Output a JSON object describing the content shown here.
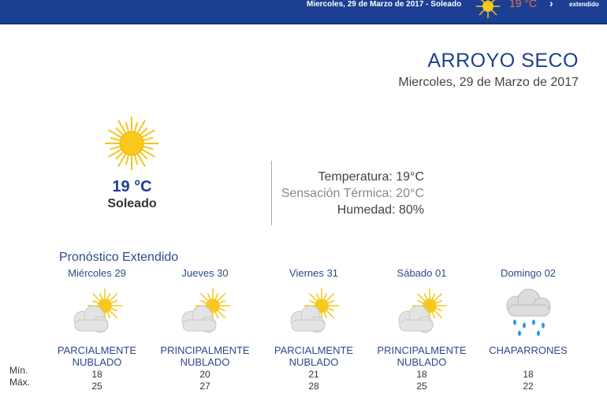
{
  "header": {
    "date_condition": "Miercoles, 29 de Marzo de 2017 - Soleado",
    "temp": "19 °C",
    "extended_link": "extendido",
    "icon": "sun-icon"
  },
  "location": {
    "city": "ARROYO SECO",
    "date": "Miercoles, 29 de Marzo de 2017"
  },
  "current": {
    "temp": "19 °C",
    "condition": "Soleado",
    "icon": "sun-icon",
    "temperature": "Temperatura: 19°C",
    "feels_like": "Sensación Térmica: 20°C",
    "humidity": "Humedad: 80%"
  },
  "forecast": {
    "title": "Pronóstico Extendido",
    "min_label": "Mín.",
    "max_label": "Máx.",
    "days": [
      {
        "name": "Miércoles 29",
        "line1": "PARCIALMENTE",
        "line2": "NUBLADO",
        "min": "18",
        "max": "25",
        "icon": "partly-cloudy"
      },
      {
        "name": "Jueves 30",
        "line1": "PRINCIPALMENTE",
        "line2": "NUBLADO",
        "min": "20",
        "max": "27",
        "icon": "partly-cloudy"
      },
      {
        "name": "Viernes 31",
        "line1": "PARCIALMENTE",
        "line2": "NUBLADO",
        "min": "21",
        "max": "28",
        "icon": "partly-cloudy"
      },
      {
        "name": "Sábado 01",
        "line1": "PRINCIPALMENTE",
        "line2": "NUBLADO",
        "min": "18",
        "max": "25",
        "icon": "partly-cloudy"
      },
      {
        "name": "Domingo 02",
        "line1": "CHAPARRONES",
        "line2": "",
        "min": "18",
        "max": "22",
        "icon": "showers"
      }
    ]
  },
  "colors": {
    "topbar": "#1c3f94",
    "title": "#1f3f8f",
    "header_temp": "#e8743a",
    "sun": "#f5c518"
  }
}
